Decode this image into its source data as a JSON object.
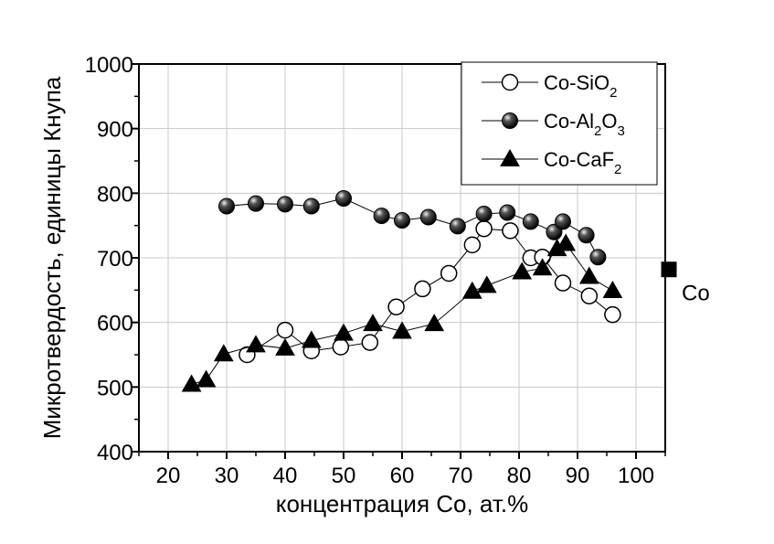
{
  "chart_data": {
    "type": "scatter",
    "xlabel": "концентрация Co, ат.%",
    "ylabel": "Микротвердость, единицы Кнупа",
    "xlim": [
      15,
      105
    ],
    "ylim": [
      400,
      1000
    ],
    "grid": true,
    "legend_position": "top-right",
    "x_ticks": [
      20,
      30,
      40,
      50,
      60,
      70,
      80,
      90,
      100
    ],
    "y_ticks": [
      400,
      500,
      600,
      700,
      800,
      900,
      1000
    ],
    "series": [
      {
        "name": "Co-SiO2",
        "legend_parts": [
          {
            "text": "Co-SiO"
          },
          {
            "text": "2",
            "sub": true
          }
        ],
        "marker": "open-circle",
        "color": "#000000",
        "points": [
          [
            33.5,
            550
          ],
          [
            40,
            588
          ],
          [
            44.5,
            556
          ],
          [
            49.5,
            562
          ],
          [
            54.5,
            569
          ],
          [
            59,
            624
          ],
          [
            63.5,
            652
          ],
          [
            68,
            676
          ],
          [
            72,
            720
          ],
          [
            74,
            745
          ],
          [
            78.5,
            742
          ],
          [
            82,
            700
          ],
          [
            84,
            701
          ],
          [
            87.5,
            661
          ],
          [
            92,
            641
          ],
          [
            96,
            612
          ]
        ]
      },
      {
        "name": "Co-Al2O3",
        "legend_parts": [
          {
            "text": "Co-Al"
          },
          {
            "text": "2",
            "sub": true
          },
          {
            "text": "O"
          },
          {
            "text": "3",
            "sub": true
          }
        ],
        "marker": "filled-circle",
        "color": "#000000",
        "points": [
          [
            30,
            780
          ],
          [
            35,
            784
          ],
          [
            40,
            783
          ],
          [
            44.5,
            780
          ],
          [
            50,
            792
          ],
          [
            56.5,
            765
          ],
          [
            60,
            758
          ],
          [
            64.5,
            763
          ],
          [
            69.5,
            749
          ],
          [
            74,
            768
          ],
          [
            78,
            770
          ],
          [
            82,
            756
          ],
          [
            86,
            740
          ],
          [
            87.5,
            756
          ],
          [
            91.5,
            735
          ],
          [
            93.5,
            701
          ]
        ]
      },
      {
        "name": "Co-CaF2",
        "legend_parts": [
          {
            "text": "Co-CaF"
          },
          {
            "text": "2",
            "sub": true
          }
        ],
        "marker": "filled-triangle",
        "color": "#000000",
        "points": [
          [
            24,
            504
          ],
          [
            26.5,
            511
          ],
          [
            29.5,
            551
          ],
          [
            35,
            565
          ],
          [
            40,
            560
          ],
          [
            44.5,
            572
          ],
          [
            50,
            583
          ],
          [
            55,
            598
          ],
          [
            60,
            586
          ],
          [
            65.5,
            598
          ],
          [
            72,
            648
          ],
          [
            74.5,
            657
          ],
          [
            80.5,
            678
          ],
          [
            84,
            684
          ],
          [
            86.5,
            714
          ],
          [
            88,
            722
          ],
          [
            92,
            671
          ],
          [
            96,
            649
          ]
        ]
      }
    ],
    "annotations": [
      {
        "label": "Co",
        "marker": "filled-square",
        "x": 105,
        "y": 682
      }
    ]
  }
}
